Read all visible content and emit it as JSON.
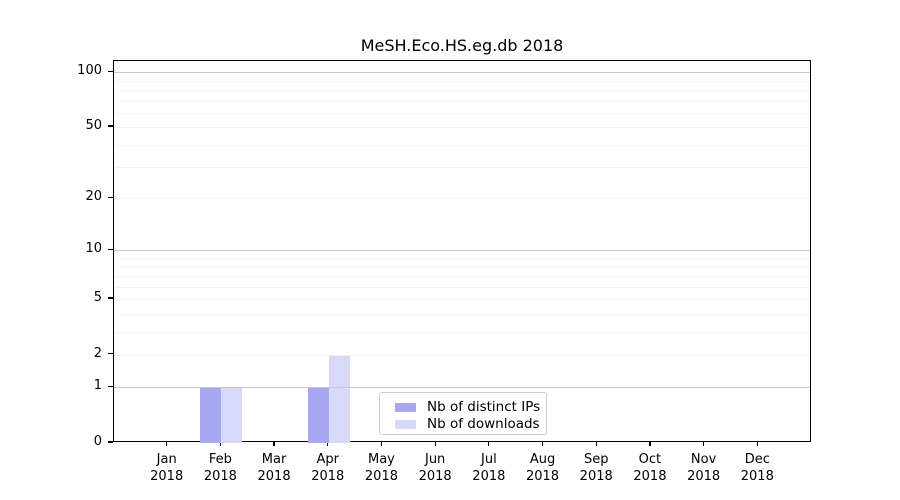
{
  "chart_data": {
    "type": "bar",
    "title": "MeSH.Eco.HS.eg.db 2018",
    "categories": [
      "Jan",
      "Feb",
      "Mar",
      "Apr",
      "May",
      "Jun",
      "Jul",
      "Aug",
      "Sep",
      "Oct",
      "Nov",
      "Dec"
    ],
    "x_tick_year": "2018",
    "series": [
      {
        "name": "Nb of distinct IPs",
        "color": "#a8a8f0",
        "values": [
          0,
          1,
          0,
          1,
          0,
          0,
          0,
          0,
          0,
          0,
          0,
          0
        ]
      },
      {
        "name": "Nb of downloads",
        "color": "#d8d8f8",
        "values": [
          0,
          1,
          0,
          2,
          0,
          0,
          0,
          0,
          0,
          0,
          0,
          0
        ]
      }
    ],
    "yscale": "log10(value+1)",
    "ylim": [
      0,
      115
    ],
    "yticks": [
      100,
      50,
      20,
      10,
      5,
      2,
      1,
      0
    ],
    "grid": {
      "major_values": [
        1,
        10,
        100
      ],
      "minor_values": [
        2,
        3,
        4,
        5,
        6,
        7,
        8,
        9,
        20,
        30,
        40,
        50,
        60,
        70,
        80,
        90
      ],
      "major_color": "#c9c9c9",
      "minor_color": "#f0f0f0"
    },
    "legend": {
      "position": "inside-bottom-center"
    },
    "axis_color": "#000000",
    "background": "#ffffff"
  }
}
